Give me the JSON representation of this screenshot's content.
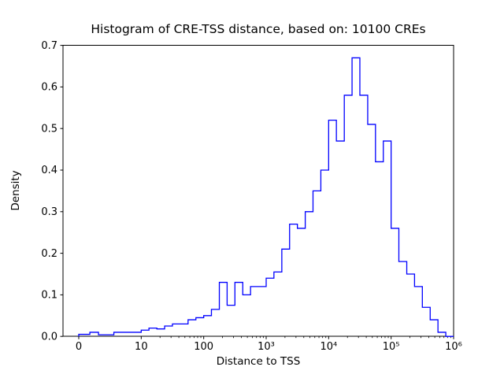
{
  "chart_data": {
    "type": "bar",
    "subtype": "step_histogram",
    "title": "Histogram of CRE-TSS distance, based on: 10100 CREs",
    "xlabel": "Distance to TSS",
    "ylabel": "Density",
    "xscale": "symlog",
    "linthresh": 10,
    "xlim": [
      0,
      1000000
    ],
    "ylim": [
      0,
      0.7
    ],
    "grid": false,
    "legend": "none",
    "line_color": "#0000ff",
    "axis_color": "#000000",
    "background_color": "#ffffff",
    "xticks": [
      {
        "value": 0,
        "label": "0"
      },
      {
        "value": 10,
        "label": "10"
      },
      {
        "value": 100,
        "label": "100"
      },
      {
        "value": 1000,
        "label": "10³"
      },
      {
        "value": 10000,
        "label": "10⁴"
      },
      {
        "value": 100000,
        "label": "10⁵"
      },
      {
        "value": 1000000,
        "label": "10⁶"
      }
    ],
    "yticks": [
      {
        "value": 0.0,
        "label": "0.0"
      },
      {
        "value": 0.1,
        "label": "0.1"
      },
      {
        "value": 0.2,
        "label": "0.2"
      },
      {
        "value": 0.3,
        "label": "0.3"
      },
      {
        "value": 0.4,
        "label": "0.4"
      },
      {
        "value": 0.5,
        "label": "0.5"
      },
      {
        "value": 0.6,
        "label": "0.6"
      },
      {
        "value": 0.7,
        "label": "0.7"
      }
    ],
    "bin_edges": [
      0,
      1.78,
      3.16,
      5.62,
      10,
      13.3,
      17.8,
      23.7,
      31.6,
      42.2,
      56.2,
      75,
      100,
      133,
      178,
      237,
      316,
      422,
      562,
      750,
      1000,
      1330,
      1780,
      2370,
      3160,
      4220,
      5620,
      7500,
      10000,
      13300,
      17800,
      23700,
      31600,
      42200,
      56200,
      75000,
      100000,
      133000,
      178000,
      237000,
      316000,
      422000,
      562000,
      750000,
      1000000
    ],
    "densities": [
      0.005,
      0.01,
      0.004,
      0.01,
      0.015,
      0.02,
      0.018,
      0.025,
      0.03,
      0.03,
      0.04,
      0.045,
      0.05,
      0.065,
      0.13,
      0.075,
      0.13,
      0.1,
      0.12,
      0.12,
      0.14,
      0.155,
      0.21,
      0.27,
      0.26,
      0.3,
      0.35,
      0.4,
      0.52,
      0.47,
      0.58,
      0.67,
      0.58,
      0.51,
      0.42,
      0.47,
      0.26,
      0.18,
      0.15,
      0.12,
      0.07,
      0.04,
      0.01,
      0.0
    ]
  }
}
